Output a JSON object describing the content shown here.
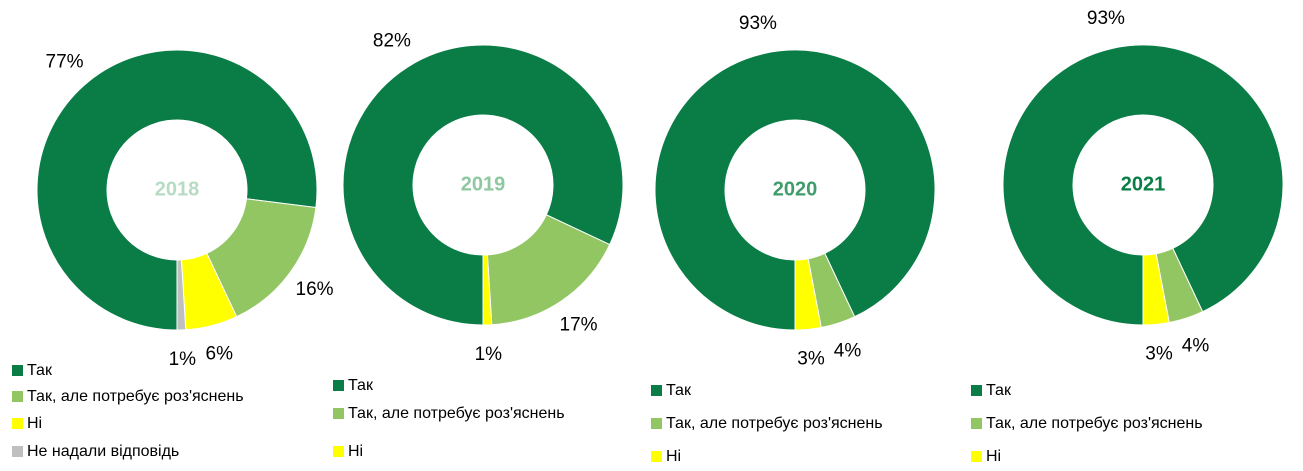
{
  "chart_data": [
    {
      "type": "donut",
      "title": "2018",
      "title_color": "#b7dbc4",
      "categories": [
        "Так",
        "Так, але потребує роз'яснень",
        "Ні",
        "Не надали відповідь"
      ],
      "values": [
        77,
        16,
        6,
        1
      ],
      "value_labels": [
        "77%",
        "16%",
        "6%",
        "1%"
      ],
      "colors": [
        "#0a7d46",
        "#92c663",
        "#ffff00",
        "#bfbfbf"
      ]
    },
    {
      "type": "donut",
      "title": "2019",
      "title_color": "#8fc7a0",
      "categories": [
        "Так",
        "Так, але потребує роз'яснень",
        "Ні"
      ],
      "values": [
        82,
        17,
        1
      ],
      "value_labels": [
        "82%",
        "17%",
        "1%"
      ],
      "colors": [
        "#0a7d46",
        "#92c663",
        "#ffff00"
      ]
    },
    {
      "type": "donut",
      "title": "2020",
      "title_color": "#3f9c6b",
      "categories": [
        "Так",
        "Так, але потребує роз'яснень",
        "Ні"
      ],
      "values": [
        93,
        4,
        3
      ],
      "value_labels": [
        "93%",
        "4%",
        "3%"
      ],
      "colors": [
        "#0a7d46",
        "#92c663",
        "#ffff00"
      ]
    },
    {
      "type": "donut",
      "title": "2021",
      "title_color": "#0a7d46",
      "categories": [
        "Так",
        "Так, але потребує роз'яснень",
        "Ні"
      ],
      "values": [
        93,
        4,
        3
      ],
      "value_labels": [
        "93%",
        "4%",
        "3%"
      ],
      "colors": [
        "#0a7d46",
        "#92c663",
        "#ffff00"
      ]
    }
  ]
}
